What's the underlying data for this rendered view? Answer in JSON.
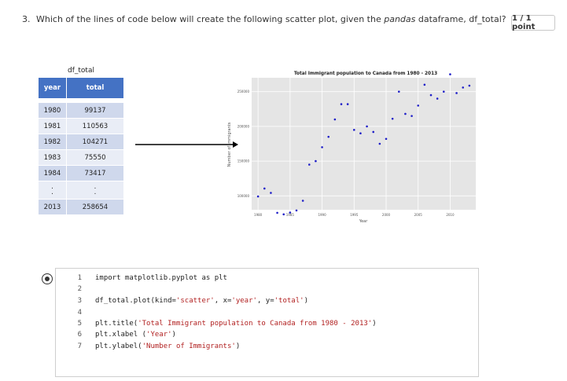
{
  "question": {
    "number": "3.",
    "text_before": "Which of the lines of code below will create the following scatter plot, given the ",
    "text_em": "pandas",
    "text_after": " dataframe, df_total?"
  },
  "points": "1 / 1 point",
  "dataframe": {
    "title": "df_total",
    "headers": [
      "year",
      "total"
    ],
    "rows": [
      [
        "1980",
        "99137"
      ],
      [
        "1981",
        "110563"
      ],
      [
        "1982",
        "104271"
      ],
      [
        "1983",
        "75550"
      ],
      [
        "1984",
        "73417"
      ]
    ],
    "last_row": [
      "2013",
      "258654"
    ]
  },
  "chart_data": {
    "type": "scatter",
    "title": "Total Immigrant population to Canada from 1980 - 2013",
    "xlabel": "Year",
    "ylabel": "Number of Immigrants",
    "xlim": [
      1979,
      2014
    ],
    "ylim": [
      80000,
      270000
    ],
    "xticks": [
      "1980",
      "1985",
      "1990",
      "1995",
      "2000",
      "2005",
      "2010"
    ],
    "yticks": [
      "100000",
      "150000",
      "200000",
      "250000"
    ],
    "x": [
      1980,
      1981,
      1982,
      1983,
      1984,
      1985,
      1986,
      1987,
      1988,
      1989,
      1990,
      1991,
      1992,
      1993,
      1994,
      1995,
      1996,
      1997,
      1998,
      1999,
      2000,
      2001,
      2002,
      2003,
      2004,
      2005,
      2006,
      2007,
      2008,
      2009,
      2010,
      2011,
      2012,
      2013
    ],
    "y": [
      99137,
      110563,
      104271,
      75550,
      73417,
      76000,
      79000,
      93000,
      145000,
      150000,
      170000,
      185000,
      210000,
      232000,
      232000,
      195000,
      190000,
      200000,
      192000,
      175000,
      182000,
      211000,
      250000,
      218000,
      215000,
      230000,
      260000,
      245000,
      240000,
      250000,
      275000,
      248000,
      256000,
      258654
    ],
    "grid": true,
    "color": "#1f1fc8",
    "background": "#e5e5e5"
  },
  "answer": {
    "selected": true,
    "lines": [
      {
        "n": "1",
        "code": "import matplotlib.pyplot as plt"
      },
      {
        "n": "2",
        "code": ""
      },
      {
        "n": "3",
        "pre": "df_total.plot(kind=",
        "s1": "'scatter'",
        "mid1": ", x=",
        "s2": "'year'",
        "mid2": ", y=",
        "s3": "'total'",
        "post": ")"
      },
      {
        "n": "4",
        "code": ""
      },
      {
        "n": "5",
        "pre": "plt.title(",
        "s1": "'Total Immigrant population to Canada from 1980 - 2013'",
        "post": ")"
      },
      {
        "n": "6",
        "pre": "plt.xlabel (",
        "s1": "'Year'",
        "post": ")"
      },
      {
        "n": "7",
        "pre": "plt.ylabel(",
        "s1": "'Number of Immigrants'",
        "post": ")"
      }
    ]
  }
}
